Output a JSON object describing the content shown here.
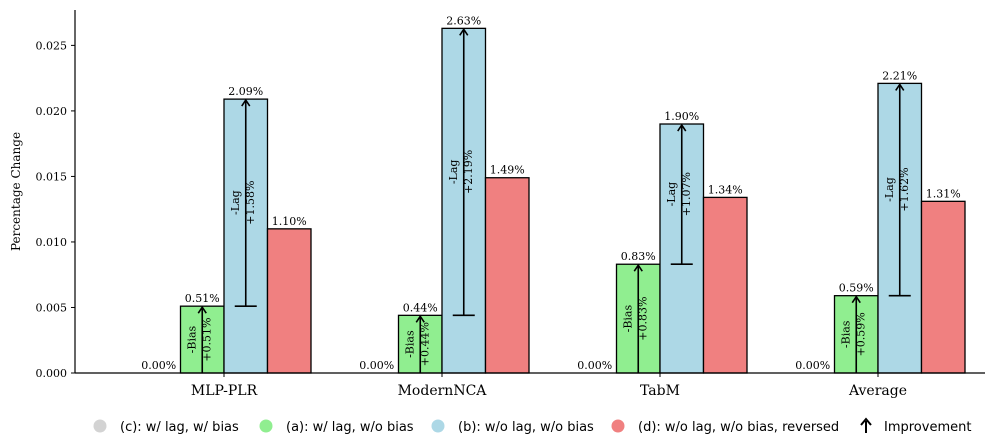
{
  "chart_data": {
    "type": "bar",
    "ylabel": "Percentage Change",
    "ylim": [
      0,
      0.0277
    ],
    "yticks": [
      "0.000",
      "0.005",
      "0.010",
      "0.015",
      "0.020",
      "0.025"
    ],
    "categories": [
      "MLP-PLR",
      "ModernNCA",
      "TabM",
      "Average"
    ],
    "series": [
      {
        "name": "(c): w/ lag, w/ bias",
        "color": "#d3d3d3",
        "values": [
          0,
          0,
          0,
          0
        ],
        "labels": [
          "0.00%",
          "0.00%",
          "0.00%",
          "0.00%"
        ]
      },
      {
        "name": "(a): w/ lag, w/o bias",
        "color": "#90ee90",
        "values": [
          0.0051,
          0.0044,
          0.0083,
          0.0059
        ],
        "labels": [
          "0.51%",
          "0.44%",
          "0.83%",
          "0.59%"
        ]
      },
      {
        "name": "(b): w/o lag, w/o bias",
        "color": "#add8e6",
        "values": [
          0.0209,
          0.0263,
          0.019,
          0.0221
        ],
        "labels": [
          "2.09%",
          "2.63%",
          "1.90%",
          "2.21%"
        ]
      },
      {
        "name": "(d): w/o lag, w/o bias, reversed",
        "color": "#f08080",
        "values": [
          0.011,
          0.0149,
          0.0134,
          0.0131
        ],
        "labels": [
          "1.10%",
          "1.49%",
          "1.34%",
          "1.31%"
        ]
      }
    ],
    "improvements": {
      "bias": {
        "label": "-Bias",
        "values": [
          "+0.51%",
          "+0.44%",
          "+0.83%",
          "+0.59%"
        ]
      },
      "lag": {
        "label": "-Lag",
        "values": [
          "+1.58%",
          "+2.19%",
          "+1.07%",
          "+1.62%"
        ]
      }
    },
    "legend": {
      "position": "bottom",
      "improvement_label": "Improvement",
      "improvement_icon": "up-arrow-icon"
    },
    "grid": false
  }
}
